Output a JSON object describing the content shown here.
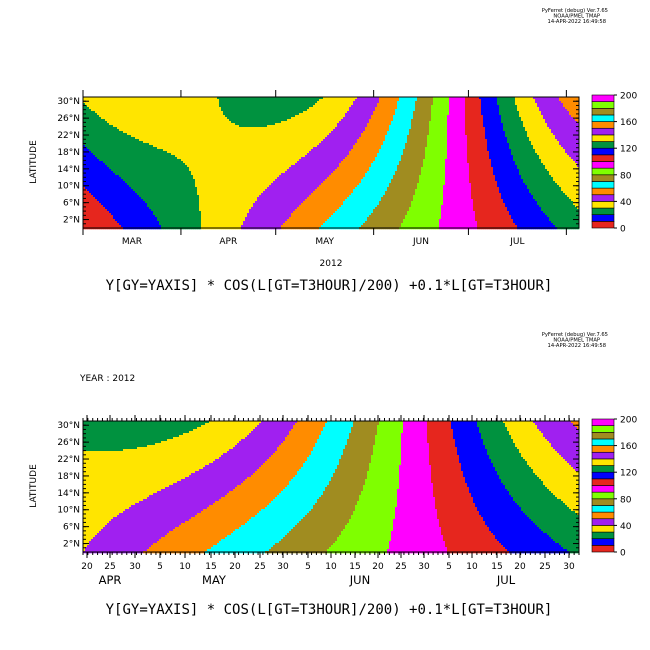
{
  "footnote": {
    "line1": "PyFerret (debug) Ver.7.65",
    "line2": "NOAA/PMEL TMAP",
    "line3": "14-APR-2022 16:49:58"
  },
  "colors": [
    "#e6261e",
    "#0000ff",
    "#00923f",
    "#ffe500",
    "#a020f0",
    "#ff8c00",
    "#00ffff",
    "#a08c20",
    "#7fff00",
    "#ff00ff"
  ],
  "chart_data": [
    {
      "type": "heatmap",
      "title": "Y[GY=YAXIS] * COS(L[GT=T3HOUR]/200) +0.1*L[GT=T3HOUR]",
      "ylabel": "LATITUDE",
      "xlabel": "2012",
      "y_ticks": [
        "30°N",
        "26°N",
        "22°N",
        "18°N",
        "14°N",
        "10°N",
        "6°N",
        "2°N"
      ],
      "y_values": [
        30,
        26,
        22,
        18,
        14,
        10,
        6,
        2
      ],
      "x_ticks": [
        "MAR",
        "APR",
        "MAY",
        "JUN",
        "JUL"
      ],
      "colorbar": {
        "ticks": [
          "200",
          "160",
          "120",
          "80",
          "40",
          "0"
        ],
        "levels": 20
      },
      "field_expression": "Y*cos(L/200)+0.1*L",
      "t_start_day": 0,
      "t_end_day": 157
    },
    {
      "type": "heatmap",
      "title": "Y[GY=YAXIS] * COS(L[GT=T3HOUR]/200) +0.1*L[GT=T3HOUR]",
      "subtitle": "YEAR : 2012",
      "ylabel": "LATITUDE",
      "y_ticks": [
        "30°N",
        "26°N",
        "22°N",
        "18°N",
        "14°N",
        "10°N",
        "6°N",
        "2°N"
      ],
      "y_values": [
        30,
        26,
        22,
        18,
        14,
        10,
        6,
        2
      ],
      "x_day_ticks": [
        "20",
        "25",
        "30",
        "5",
        "10",
        "15",
        "20",
        "25",
        "30",
        "5",
        "10",
        "15",
        "20",
        "25",
        "30",
        "5",
        "10",
        "15",
        "20",
        "25",
        "30"
      ],
      "x_month_ticks": [
        "APR",
        "MAY",
        "JUN",
        "JUL"
      ],
      "colorbar": {
        "ticks": [
          "200",
          "160",
          "120",
          "80",
          "40",
          "0"
        ],
        "levels": 20
      },
      "field_expression": "Y*cos(L/200)+0.1*L",
      "t_start_day": 50,
      "t_end_day": 152
    }
  ]
}
